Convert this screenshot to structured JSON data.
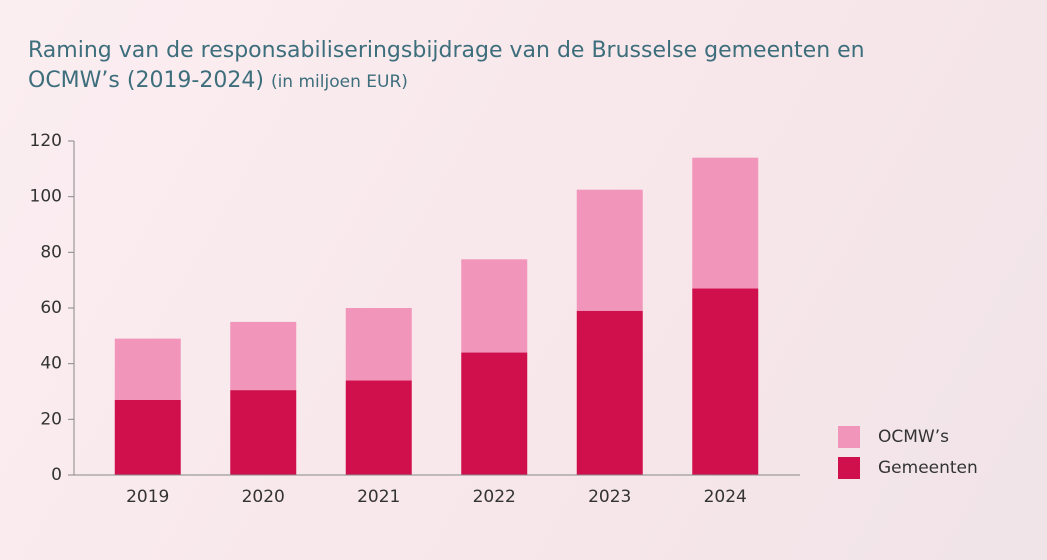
{
  "chart_data": {
    "type": "stacked_bar",
    "title": "Raming van de responsabiliseringsbijdrage van de Brusselse gemeenten en OCMW’s (2019-2024)",
    "subtitle": "(in miljoen EUR)",
    "categories": [
      "2019",
      "2020",
      "2021",
      "2022",
      "2023",
      "2024"
    ],
    "series": [
      {
        "name": "Gemeenten",
        "color": "#d0104c",
        "values": [
          27,
          30.5,
          34,
          44,
          59,
          67
        ]
      },
      {
        "name": "OCMW’s",
        "color": "#f195bb",
        "values": [
          22,
          24.5,
          26,
          33.5,
          43.5,
          47
        ]
      }
    ],
    "ylim": [
      0,
      120
    ],
    "yticks": [
      0,
      20,
      40,
      60,
      80,
      100,
      120
    ],
    "grid": false
  }
}
